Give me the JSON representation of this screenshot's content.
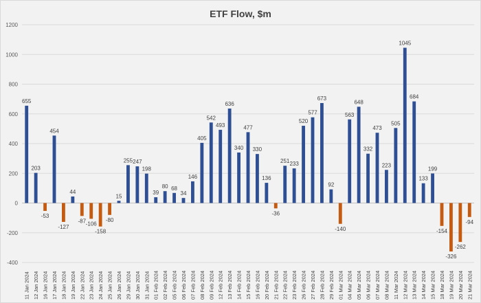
{
  "chart_data": {
    "type": "bar",
    "title": "ETF Flow, $m",
    "xlabel": "",
    "ylabel": "",
    "ylim": [
      -400,
      1200
    ],
    "yticks": [
      -400,
      -200,
      0,
      200,
      400,
      600,
      800,
      1000,
      1200
    ],
    "grid": true,
    "colors": {
      "positive": "#2f4f94",
      "negative": "#c55a11"
    },
    "categories": [
      "11 Jan 2024",
      "12 Jan 2024",
      "16 Jan 2024",
      "17 Jan 2024",
      "18 Jan 2024",
      "19 Jan 2024",
      "22 Jan 2024",
      "23 Jan 2024",
      "24 Jan 2024",
      "25 Jan 2024",
      "26 Jan 2024",
      "29 Jan 2024",
      "30 Jan 2024",
      "31 Jan 2024",
      "01 Feb 2024",
      "02 Feb 2024",
      "05 Feb 2024",
      "06 Feb 2024",
      "07 Feb 2024",
      "08 Feb 2024",
      "09 Feb 2024",
      "12 Feb 2024",
      "13 Feb 2024",
      "14 Feb 2024",
      "15 Feb 2024",
      "16 Feb 2024",
      "20 Feb 2024",
      "21 Feb 2024",
      "22 Feb 2024",
      "23 Feb 2024",
      "26 Feb 2024",
      "27 Feb 2024",
      "28 Feb 2024",
      "29 Feb 2024",
      "01 Mar 2024",
      "04 Mar 2024",
      "05 Mar 2024",
      "06 Mar 2024",
      "07 Mar 2024",
      "08 Mar 2024",
      "11 Mar 2024",
      "12 Mar 2024",
      "13 Mar 2024",
      "14 Mar 2024",
      "15 Mar 2024",
      "18 Mar 2024",
      "19 Mar 2024",
      "20 Mar 2024",
      "21 Mar 2024"
    ],
    "values": [
      655,
      203,
      -53,
      454,
      -127,
      44,
      -87,
      -106,
      -158,
      -80,
      15,
      255,
      247,
      198,
      39,
      80,
      68,
      34,
      146,
      405,
      542,
      493,
      636,
      340,
      477,
      330,
      136,
      -36,
      251,
      233,
      520,
      577,
      673,
      92,
      -140,
      563,
      648,
      332,
      473,
      223,
      505,
      1045,
      684,
      133,
      199,
      -154,
      -326,
      -262,
      -94
    ]
  }
}
